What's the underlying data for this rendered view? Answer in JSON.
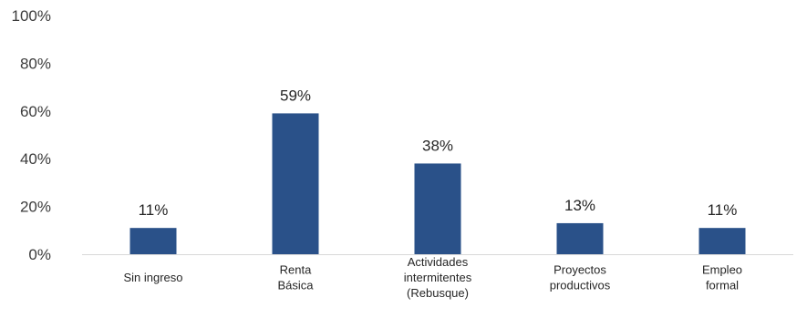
{
  "chart_data": {
    "type": "bar",
    "title": "",
    "xlabel": "",
    "ylabel": "",
    "categories": [
      [
        "Sin ingreso"
      ],
      [
        "Renta",
        "Básica"
      ],
      [
        "Actividades",
        "intermitentes",
        "(Rebusque)"
      ],
      [
        "Proyectos",
        "productivos"
      ],
      [
        "Empleo",
        "formal"
      ]
    ],
    "values": [
      11,
      59,
      38,
      13,
      11
    ],
    "data_labels": [
      "11%",
      "59%",
      "38%",
      "13%",
      "11%"
    ],
    "ylim": [
      0,
      100
    ],
    "yticks": [
      0,
      20,
      40,
      60,
      80,
      100
    ],
    "ytick_labels": [
      "0%",
      "20%",
      "40%",
      "60%",
      "80%",
      "100%"
    ],
    "grid": false,
    "legend": "none",
    "colors": {
      "bar": "#2a5189",
      "axis": "#d9d9d9"
    }
  }
}
